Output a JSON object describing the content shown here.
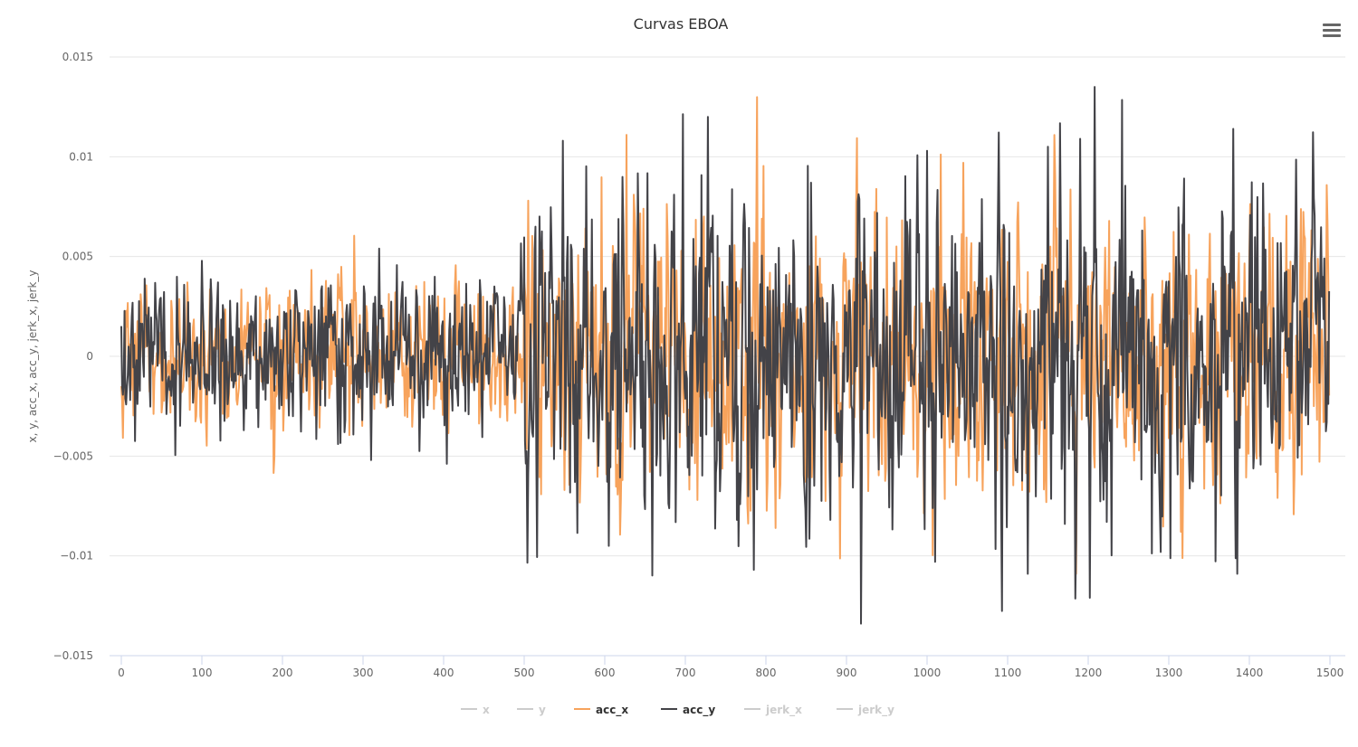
{
  "chart_data": {
    "type": "line",
    "title": "Curvas EBOA",
    "ylabel": "x, y, acc_x, acc_y, jerk_x, jerk_y",
    "xlabel": "",
    "xlim": [
      0,
      1500
    ],
    "ylim": [
      -0.015,
      0.015
    ],
    "x_ticks": [
      "0",
      "100",
      "200",
      "300",
      "400",
      "500",
      "600",
      "700",
      "800",
      "900",
      "1000",
      "1100",
      "1200",
      "1300",
      "1400",
      "1500"
    ],
    "y_ticks": [
      "0.015",
      "0.01",
      "0.005",
      "0",
      "−0.005",
      "−0.01",
      "−0.015"
    ],
    "y_tick_values": [
      0.015,
      0.01,
      0.005,
      0,
      -0.005,
      -0.01,
      -0.015
    ],
    "grid": true,
    "legend_position": "bottom",
    "n_points": 1500,
    "series": [
      {
        "name": "x",
        "visible": false,
        "color": "#cccccc"
      },
      {
        "name": "y",
        "visible": false,
        "color": "#cccccc"
      },
      {
        "name": "acc_x",
        "visible": true,
        "color": "#f7a35c",
        "amplitude_by_range": [
          {
            "from": 0,
            "to": 500,
            "std": 0.0016
          },
          {
            "from": 500,
            "to": 1500,
            "std": 0.0033
          }
        ],
        "peaks": [
          [
            505,
            0.0078
          ],
          [
            648,
            0.0074
          ],
          [
            795,
            0.0069
          ],
          [
            1045,
            0.0097
          ],
          [
            1185,
            -0.0109
          ],
          [
            1325,
            0.0061
          ],
          [
            715,
            -0.0072
          ],
          [
            550,
            -0.0067
          ]
        ]
      },
      {
        "name": "acc_y",
        "visible": true,
        "color": "#434348",
        "amplitude_by_range": [
          {
            "from": 0,
            "to": 500,
            "std": 0.0018
          },
          {
            "from": 500,
            "to": 1500,
            "std": 0.0038
          }
        ],
        "peaks": [
          [
            320,
            0.0054
          ],
          [
            310,
            -0.0052
          ],
          [
            548,
            0.0108
          ],
          [
            605,
            -0.0095
          ],
          [
            728,
            0.012
          ],
          [
            785,
            -0.0107
          ],
          [
            1000,
            0.0103
          ],
          [
            1010,
            -0.0103
          ],
          [
            1208,
            0.0135
          ],
          [
            1202,
            -0.0121
          ],
          [
            1380,
            0.0114
          ],
          [
            1385,
            -0.0109
          ],
          [
            1125,
            -0.0109
          ],
          [
            1150,
            0.0105
          ],
          [
            1190,
            0.0109
          ]
        ]
      },
      {
        "name": "jerk_x",
        "visible": false,
        "color": "#cccccc"
      },
      {
        "name": "jerk_y",
        "visible": false,
        "color": "#cccccc"
      }
    ]
  }
}
